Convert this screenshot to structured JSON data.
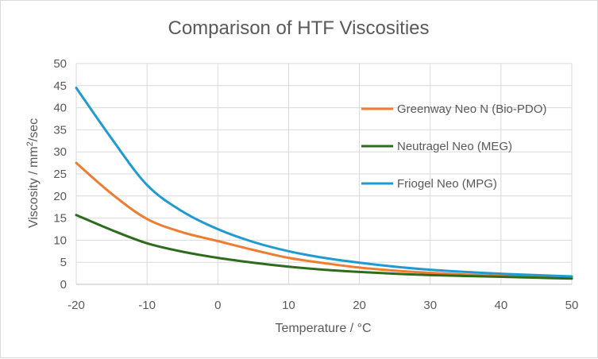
{
  "chart_data": {
    "type": "line",
    "title": "Comparison of HTF Viscosities",
    "xlabel": "Temperature / °C",
    "ylabel": {
      "prefix": "Viscosity / mm",
      "sup": "2",
      "suffix": "/sec"
    },
    "xlim": [
      -20,
      50
    ],
    "ylim": [
      0,
      50
    ],
    "x_ticks": [
      -20,
      -10,
      0,
      10,
      20,
      30,
      40,
      50
    ],
    "y_ticks": [
      0,
      5,
      10,
      15,
      20,
      25,
      30,
      35,
      40,
      45,
      50
    ],
    "grid": {
      "x": true,
      "y": true
    },
    "legend_position": "right",
    "series": [
      {
        "name": "Greenway Neo N (Bio-PDO)",
        "color": "#ed7d31",
        "x": [
          -20,
          -15,
          -10,
          -5,
          0,
          5,
          10,
          15,
          20,
          25,
          30,
          35,
          40,
          45,
          50
        ],
        "values": [
          27.5,
          20.5,
          14.8,
          11.8,
          9.8,
          7.8,
          6.0,
          4.8,
          3.8,
          3.1,
          2.6,
          2.2,
          1.9,
          1.7,
          1.5
        ]
      },
      {
        "name": "Neutragel Neo (MEG)",
        "color": "#2f6b1f",
        "x": [
          -20,
          -15,
          -10,
          -5,
          0,
          5,
          10,
          15,
          20,
          25,
          30,
          35,
          40,
          45,
          50
        ],
        "values": [
          15.7,
          12.3,
          9.3,
          7.4,
          6.0,
          4.9,
          4.0,
          3.3,
          2.8,
          2.4,
          2.1,
          1.9,
          1.7,
          1.5,
          1.3
        ]
      },
      {
        "name": "Friogel Neo (MPG)",
        "color": "#1f9bd1",
        "x": [
          -20,
          -15,
          -10,
          -5,
          0,
          5,
          10,
          15,
          20,
          25,
          30,
          35,
          40,
          45,
          50
        ],
        "values": [
          44.5,
          33.0,
          22.5,
          16.5,
          12.5,
          9.6,
          7.5,
          6.0,
          4.9,
          4.0,
          3.3,
          2.8,
          2.4,
          2.1,
          1.8
        ]
      }
    ]
  }
}
